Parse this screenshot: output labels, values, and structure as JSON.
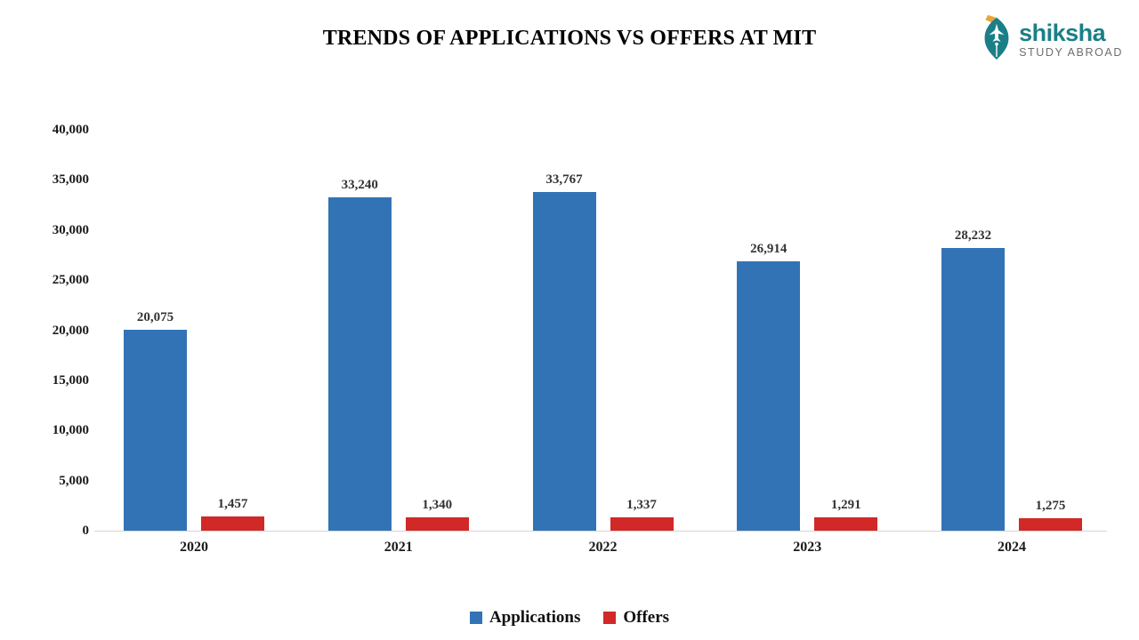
{
  "header": {
    "title": "TRENDS OF APPLICATIONS VS OFFERS AT MIT",
    "logo": {
      "brand": "shiksha",
      "tagline": "STUDY ABROAD",
      "brand_color": "#1a7f87",
      "tagline_color": "#6d6e71",
      "nib_color": "#1a7f87",
      "accent_color": "#e9a43b"
    }
  },
  "chart_data": {
    "type": "bar",
    "title": "TRENDS OF APPLICATIONS VS OFFERS AT MIT",
    "categories": [
      "2020",
      "2021",
      "2022",
      "2023",
      "2024"
    ],
    "series": [
      {
        "name": "Applications",
        "color": "#3273b5",
        "values": [
          20075,
          33240,
          33767,
          26914,
          28232
        ],
        "labels": [
          "20,075",
          "33,240",
          "33,767",
          "26,914",
          "28,232"
        ]
      },
      {
        "name": "Offers",
        "color": "#d02927",
        "values": [
          1457,
          1340,
          1337,
          1291,
          1275
        ],
        "labels": [
          "1,457",
          "1,340",
          "1,337",
          "1,291",
          "1,275"
        ]
      }
    ],
    "xlabel": "",
    "ylabel": "",
    "ylim": [
      0,
      40000
    ],
    "ytick_step": 5000,
    "ytick_labels": [
      "0",
      "5,000",
      "10,000",
      "15,000",
      "20,000",
      "25,000",
      "30,000",
      "35,000",
      "40,000"
    ],
    "grid": false,
    "legend_position": "bottom",
    "background": "#ffffff"
  }
}
